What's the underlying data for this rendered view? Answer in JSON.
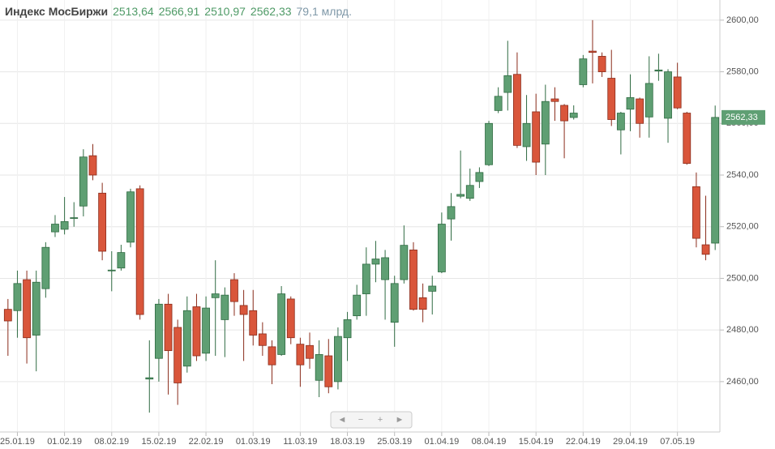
{
  "chart_data": {
    "type": "candlestick",
    "title": "Индекс МосБиржи",
    "header_values": [
      "2513,64",
      "2566,91",
      "2510,97",
      "2562,33"
    ],
    "volume_label": "79,1 млрд.",
    "last_label": "2562,33",
    "categories": [
      null,
      "25.01.19",
      null,
      null,
      null,
      null,
      "01.02.19",
      null,
      null,
      null,
      null,
      "08.02.19",
      null,
      null,
      null,
      null,
      "15.02.19",
      null,
      null,
      null,
      null,
      "22.02.19",
      null,
      null,
      null,
      null,
      "01.03.19",
      null,
      null,
      null,
      null,
      "11.03.19",
      null,
      null,
      null,
      null,
      "18.03.19",
      null,
      null,
      null,
      null,
      "25.03.19",
      null,
      null,
      null,
      null,
      "01.04.19",
      null,
      null,
      null,
      null,
      "08.04.19",
      null,
      null,
      null,
      null,
      "15.04.19",
      null,
      null,
      null,
      null,
      "22.04.19",
      null,
      null,
      null,
      null,
      "29.04.19",
      null,
      null,
      null,
      null,
      "07.05.19",
      null,
      null,
      null,
      null
    ],
    "open": [
      2488,
      2487.5,
      2499.5,
      2478,
      2496,
      2518,
      2519,
      2523.3,
      2528,
      2547.5,
      2533,
      2503,
      2504,
      2514,
      2534.7,
      2461,
      2469,
      2490,
      2481,
      2466,
      2489,
      2471,
      2492.5,
      2484,
      2499.5,
      2489.5,
      2487.5,
      2478.5,
      2473.5,
      2470.5,
      2492,
      2474.5,
      2474,
      2460.5,
      2470,
      2460,
      2477,
      2485.5,
      2494,
      2505.5,
      2499.5,
      2483,
      2499.5,
      2511,
      2492.5,
      2495,
      2502.5,
      2523,
      2531.8,
      2531,
      2537.5,
      2544,
      2565,
      2572,
      2579,
      2551,
      2564.5,
      2552,
      2569.5,
      2567,
      2562.3,
      2575,
      2588,
      2586,
      2577.5,
      2557.5,
      2565.5,
      2569.5,
      2562.5,
      2580.3,
      2562,
      2578,
      2564,
      2535.5,
      2513,
      2513.64
    ],
    "high": [
      2492,
      2503,
      2503,
      2503,
      2514,
      2524.5,
      2531.5,
      2529.5,
      2550,
      2552,
      2537,
      2510.5,
      2513,
      2534.7,
      2536,
      2476,
      2492,
      2494,
      2484,
      2493,
      2494,
      2493,
      2507,
      2496.5,
      2502,
      2495.5,
      2495.5,
      2483,
      2476,
      2497,
      2493,
      2477,
      2479,
      2476,
      2476.5,
      2481,
      2487,
      2497.5,
      2512,
      2514.5,
      2511,
      2501,
      2520.5,
      2514,
      2498,
      2501,
      2525.5,
      2533,
      2549.5,
      2542.5,
      2543,
      2561,
      2574,
      2592,
      2587.5,
      2571,
      2571.5,
      2575,
      2574,
      2567.5,
      2567,
      2586.5,
      2600,
      2587.5,
      2588.5,
      2564.5,
      2579,
      2570,
      2586,
      2587,
      2581,
      2583.5,
      2564.5,
      2541,
      2532,
      2566.91
    ],
    "low": [
      2470,
      2477,
      2467,
      2464,
      2492.5,
      2516,
      2517,
      2520,
      2524,
      2538,
      2507,
      2495,
      2503,
      2512,
      2484,
      2448,
      2460,
      2455,
      2451,
      2463.5,
      2468,
      2468,
      2470,
      2469.5,
      2485.5,
      2468,
      2474,
      2470,
      2459,
      2470,
      2474.5,
      2458,
      2465,
      2454,
      2455.5,
      2457,
      2468,
      2484,
      2485.5,
      2498.5,
      2484,
      2473.5,
      2498,
      2487.5,
      2483,
      2486,
      2502,
      2514.6,
      2531,
      2530,
      2535,
      2543.5,
      2564,
      2565,
      2550.5,
      2545.5,
      2540,
      2540,
      2561,
      2546.5,
      2561.5,
      2574,
      2575.5,
      2578,
      2559,
      2548,
      2557,
      2554.5,
      2554.5,
      2576.5,
      2552.5,
      2565.5,
      2544,
      2512,
      2507,
      2510.97
    ],
    "close": [
      2483.5,
      2498,
      2477,
      2498.5,
      2512,
      2521,
      2522,
      2523.5,
      2547,
      2540,
      2510.5,
      2503.2,
      2510,
      2533.5,
      2486,
      2461.5,
      2490,
      2472,
      2459.5,
      2487.5,
      2470,
      2488.5,
      2494,
      2493.5,
      2491,
      2486,
      2478,
      2474,
      2466.5,
      2494,
      2477,
      2466.5,
      2469,
      2470.5,
      2458,
      2477.5,
      2484,
      2493.5,
      2505.5,
      2507.5,
      2508,
      2498,
      2512.8,
      2488,
      2488,
      2497,
      2521,
      2527.8,
      2532.5,
      2536,
      2541,
      2560,
      2570.5,
      2578.5,
      2551.5,
      2560,
      2545,
      2568.5,
      2568.5,
      2561,
      2564,
      2585,
      2587.5,
      2580,
      2561.5,
      2564,
      2570,
      2560,
      2575.5,
      2580.7,
      2580,
      2566,
      2544.5,
      2515.5,
      2509.3,
      2562.33
    ],
    "up_color": "#5f9f73",
    "down_color": "#d9563b",
    "ylim": [
      2440.5,
      2607.8
    ],
    "yticks": [
      {
        "value": 2460,
        "label": "2460,00"
      },
      {
        "value": 2480,
        "label": "2480,00"
      },
      {
        "value": 2500,
        "label": "2500,00"
      },
      {
        "value": 2520,
        "label": "2520,00"
      },
      {
        "value": 2540,
        "label": "2540,00"
      },
      {
        "value": 2560,
        "label": "2560,00"
      },
      {
        "value": 2580,
        "label": "2580,00"
      },
      {
        "value": 2600,
        "label": "2600,00"
      }
    ],
    "grid": true
  }
}
